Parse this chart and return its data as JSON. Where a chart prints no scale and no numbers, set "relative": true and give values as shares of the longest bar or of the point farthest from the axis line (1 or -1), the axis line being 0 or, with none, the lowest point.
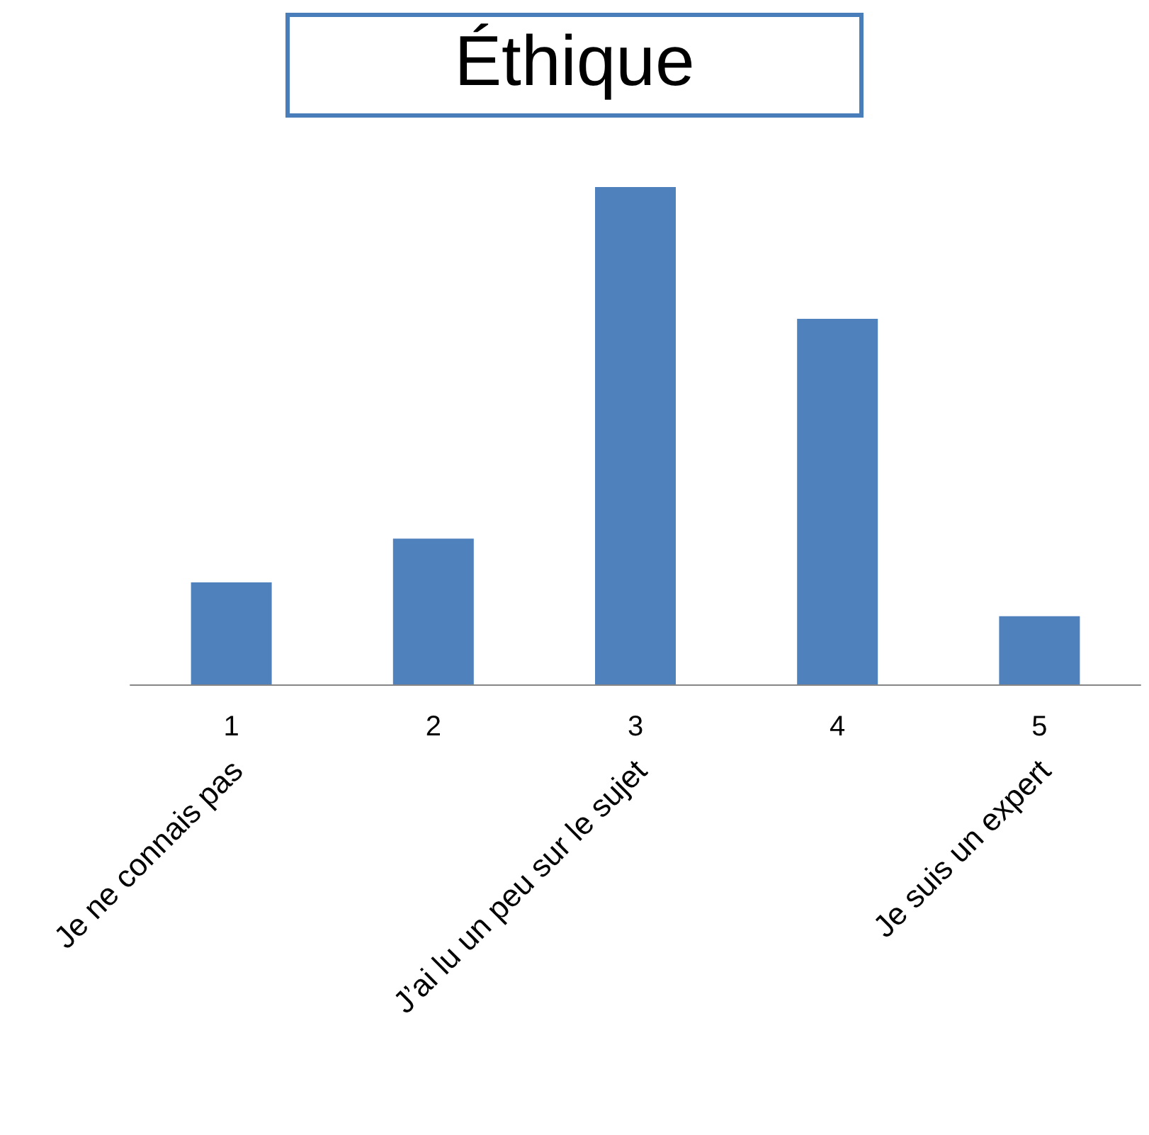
{
  "chart_data": {
    "type": "bar",
    "title": "Éthique",
    "relative": true,
    "color": "#4f81bd",
    "categories": [
      "1",
      "2",
      "3",
      "4",
      "5"
    ],
    "values": [
      0.205,
      0.293,
      1,
      0.735,
      0.137
    ],
    "annotations": [
      "Je ne connais pas",
      "J’ai lu un peu sur le sujet",
      "Je suis un expert"
    ]
  }
}
